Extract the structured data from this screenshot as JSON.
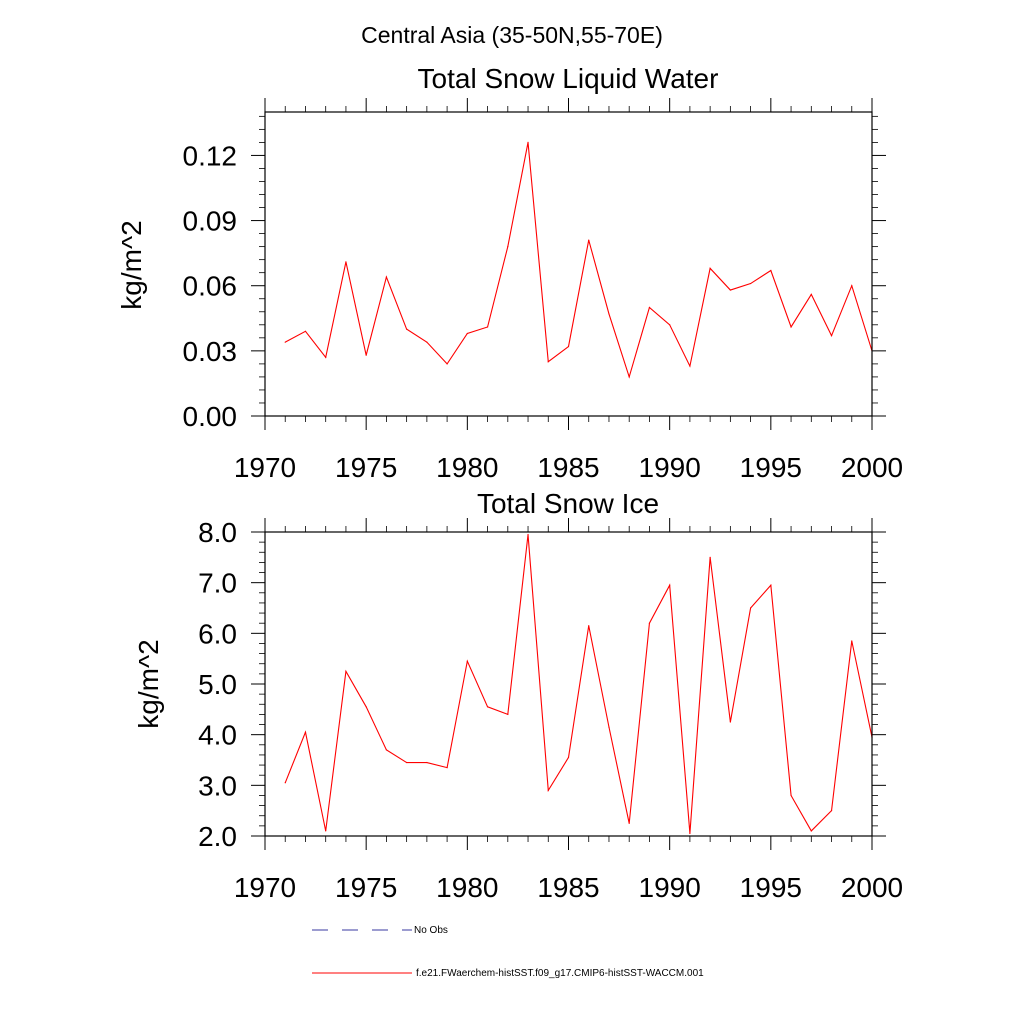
{
  "suptitle": "Central Asia (35-50N,55-70E)",
  "colors": {
    "model": "#ff0000",
    "obs": "#3a3aa0",
    "axis": "#000000"
  },
  "legend": {
    "obs_label": "No Obs",
    "model_label": "f.e21.FWaerchem-histSST.f09_g17.CMIP6-histSST-WACCM.001"
  },
  "chart_data": [
    {
      "type": "line",
      "title": "Total Snow Liquid Water",
      "ylabel": "kg/m^2",
      "xlabel": "",
      "xlim": [
        1970,
        2000
      ],
      "ylim": [
        0,
        0.14
      ],
      "xticks": [
        1970,
        1975,
        1980,
        1985,
        1990,
        1995,
        2000
      ],
      "xtick_labels": [
        "1970",
        "1975",
        "1980",
        "1985",
        "1990",
        "1995",
        "2000"
      ],
      "yticks": [
        0,
        0.03,
        0.06,
        0.09,
        0.12
      ],
      "ytick_labels": [
        "0.00",
        "0.03",
        "0.06",
        "0.09",
        "0.12"
      ],
      "grid": false,
      "x": [
        1971,
        1972,
        1973,
        1974,
        1975,
        1976,
        1977,
        1978,
        1979,
        1980,
        1981,
        1982,
        1983,
        1984,
        1985,
        1986,
        1987,
        1988,
        1989,
        1990,
        1991,
        1992,
        1993,
        1994,
        1995,
        1996,
        1997,
        1998,
        1999,
        2000
      ],
      "series": [
        {
          "name": "f.e21.FWaerchem-histSST.f09_g17.CMIP6-histSST-WACCM.001",
          "values": [
            0.034,
            0.039,
            0.027,
            0.071,
            0.028,
            0.064,
            0.04,
            0.034,
            0.024,
            0.038,
            0.041,
            0.078,
            0.126,
            0.025,
            0.032,
            0.081,
            0.047,
            0.018,
            0.05,
            0.042,
            0.023,
            0.068,
            0.058,
            0.061,
            0.067,
            0.041,
            0.056,
            0.037,
            0.06,
            0.03
          ]
        }
      ]
    },
    {
      "type": "line",
      "title": "Total Snow Ice",
      "ylabel": "kg/m^2",
      "xlabel": "",
      "xlim": [
        1970,
        2000
      ],
      "ylim": [
        2.0,
        8.0
      ],
      "xticks": [
        1970,
        1975,
        1980,
        1985,
        1990,
        1995,
        2000
      ],
      "xtick_labels": [
        "1970",
        "1975",
        "1980",
        "1985",
        "1990",
        "1995",
        "2000"
      ],
      "yticks": [
        2,
        3,
        4,
        5,
        6,
        7,
        8
      ],
      "ytick_labels": [
        "2.0",
        "3.0",
        "4.0",
        "5.0",
        "6.0",
        "7.0",
        "8.0"
      ],
      "grid": false,
      "x": [
        1971,
        1972,
        1973,
        1974,
        1975,
        1976,
        1977,
        1978,
        1979,
        1980,
        1981,
        1982,
        1983,
        1984,
        1985,
        1986,
        1987,
        1988,
        1989,
        1990,
        1991,
        1992,
        1993,
        1994,
        1995,
        1996,
        1997,
        1998,
        1999,
        2000
      ],
      "series": [
        {
          "name": "f.e21.FWaerchem-histSST.f09_g17.CMIP6-histSST-WACCM.001",
          "values": [
            3.05,
            4.05,
            2.1,
            5.25,
            4.55,
            3.7,
            3.45,
            3.45,
            3.35,
            5.45,
            4.55,
            4.4,
            7.95,
            2.9,
            3.55,
            6.15,
            4.15,
            2.25,
            6.2,
            6.95,
            2.05,
            7.5,
            4.25,
            6.5,
            6.95,
            2.8,
            2.1,
            2.5,
            5.85,
            3.95
          ]
        }
      ]
    }
  ]
}
